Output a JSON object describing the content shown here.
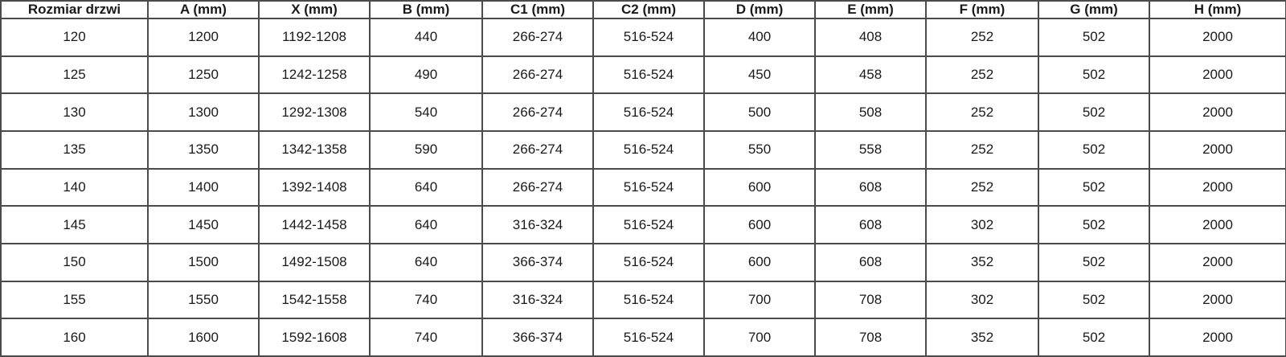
{
  "table": {
    "columns": [
      "Rozmiar drzwi",
      "A (mm)",
      "X (mm)",
      "B (mm)",
      "C1 (mm)",
      "C2 (mm)",
      "D (mm)",
      "E (mm)",
      "F (mm)",
      "G (mm)",
      "H (mm)"
    ],
    "rows": [
      [
        "120",
        "1200",
        "1192-1208",
        "440",
        "266-274",
        "516-524",
        "400",
        "408",
        "252",
        "502",
        "2000"
      ],
      [
        "125",
        "1250",
        "1242-1258",
        "490",
        "266-274",
        "516-524",
        "450",
        "458",
        "252",
        "502",
        "2000"
      ],
      [
        "130",
        "1300",
        "1292-1308",
        "540",
        "266-274",
        "516-524",
        "500",
        "508",
        "252",
        "502",
        "2000"
      ],
      [
        "135",
        "1350",
        "1342-1358",
        "590",
        "266-274",
        "516-524",
        "550",
        "558",
        "252",
        "502",
        "2000"
      ],
      [
        "140",
        "1400",
        "1392-1408",
        "640",
        "266-274",
        "516-524",
        "600",
        "608",
        "252",
        "502",
        "2000"
      ],
      [
        "145",
        "1450",
        "1442-1458",
        "640",
        "316-324",
        "516-524",
        "600",
        "608",
        "302",
        "502",
        "2000"
      ],
      [
        "150",
        "1500",
        "1492-1508",
        "640",
        "366-374",
        "516-524",
        "600",
        "608",
        "352",
        "502",
        "2000"
      ],
      [
        "155",
        "1550",
        "1542-1558",
        "740",
        "316-324",
        "516-524",
        "700",
        "708",
        "302",
        "502",
        "2000"
      ],
      [
        "160",
        "1600",
        "1592-1608",
        "740",
        "366-374",
        "516-524",
        "700",
        "708",
        "352",
        "502",
        "2000"
      ]
    ]
  },
  "colors": {
    "outer_border": "#262626",
    "inner_border": "#4b4b4b",
    "text": "#1a1a1a",
    "background": "#ffffff"
  }
}
